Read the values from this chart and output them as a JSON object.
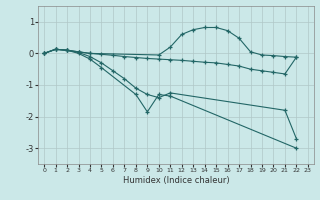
{
  "background_color": "#cbe8e8",
  "grid_color": "#b0c8c8",
  "line_color": "#226666",
  "xlabel": "Humidex (Indice chaleur)",
  "xlim": [
    -0.5,
    23.5
  ],
  "ylim": [
    -3.5,
    1.5
  ],
  "yticks": [
    -3,
    -2,
    -1,
    0,
    1
  ],
  "xticks": [
    0,
    1,
    2,
    3,
    4,
    5,
    6,
    7,
    8,
    9,
    10,
    11,
    12,
    13,
    14,
    15,
    16,
    17,
    18,
    19,
    20,
    21,
    22,
    23
  ],
  "lines": [
    {
      "x": [
        0,
        1,
        2,
        3,
        4,
        10,
        11,
        12,
        13,
        14,
        15,
        16,
        17,
        18,
        19,
        20,
        21,
        22
      ],
      "y": [
        0.0,
        0.13,
        0.1,
        0.05,
        0.0,
        -0.05,
        0.2,
        0.6,
        0.75,
        0.82,
        0.82,
        0.72,
        0.48,
        0.05,
        -0.05,
        -0.07,
        -0.1,
        -0.12
      ]
    },
    {
      "x": [
        0,
        1,
        2,
        3,
        4,
        5,
        6,
        7,
        8,
        9,
        10,
        11,
        12,
        13,
        14,
        15,
        16,
        17,
        18,
        19,
        20,
        21,
        22
      ],
      "y": [
        0.0,
        0.13,
        0.1,
        0.05,
        0.0,
        -0.03,
        -0.06,
        -0.1,
        -0.13,
        -0.16,
        -0.18,
        -0.2,
        -0.22,
        -0.25,
        -0.28,
        -0.3,
        -0.35,
        -0.4,
        -0.5,
        -0.55,
        -0.6,
        -0.65,
        -0.12
      ]
    },
    {
      "x": [
        0,
        1,
        2,
        3,
        4,
        5,
        6,
        7,
        8,
        9,
        10,
        11,
        21,
        22
      ],
      "y": [
        0.0,
        0.13,
        0.1,
        0.03,
        -0.1,
        -0.3,
        -0.55,
        -0.8,
        -1.1,
        -1.3,
        -1.4,
        -1.25,
        -1.8,
        -2.7
      ]
    },
    {
      "x": [
        0,
        1,
        2,
        3,
        4,
        5,
        8,
        9,
        10,
        11,
        22
      ],
      "y": [
        0.0,
        0.13,
        0.1,
        0.0,
        -0.18,
        -0.45,
        -1.3,
        -1.85,
        -1.3,
        -1.35,
        -3.0
      ]
    }
  ]
}
